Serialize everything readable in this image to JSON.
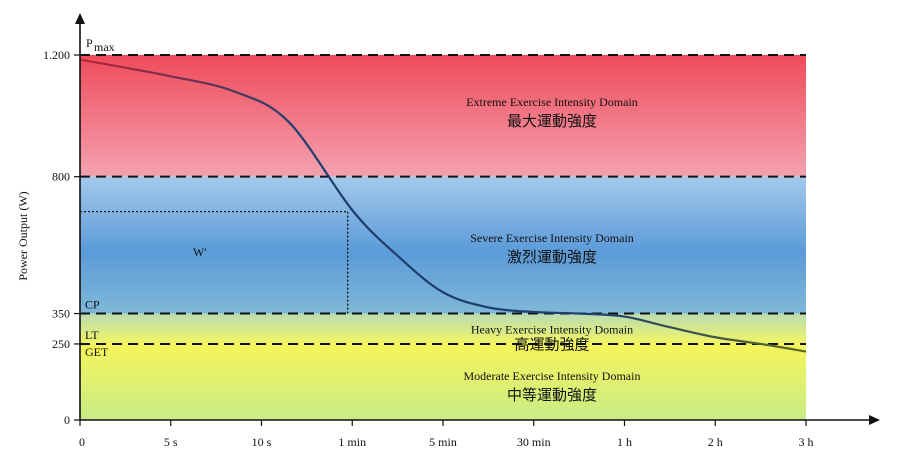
{
  "chart_data": {
    "type": "line",
    "title": "",
    "xlabel": "",
    "ylabel": "Power Output (W)",
    "ylim": [
      0,
      1200
    ],
    "y_ticks": [
      {
        "value": 0,
        "label": "0"
      },
      {
        "value": 250,
        "label": "250"
      },
      {
        "value": 350,
        "label": "350"
      },
      {
        "value": 800,
        "label": "800"
      },
      {
        "value": 1200,
        "label": "1.200"
      }
    ],
    "x_ticks": [
      "0",
      "5 s",
      "10 s",
      "1 min",
      "5 min",
      "30 min",
      "1 h",
      "2 h",
      "3 h"
    ],
    "thresholds": [
      {
        "name": "Pmax",
        "label_main": "P",
        "label_sub": "max",
        "value": 1200
      },
      {
        "name": "upper-severe",
        "value": 800
      },
      {
        "name": "CP",
        "label": "CP",
        "value": 350
      },
      {
        "name": "LT-GET",
        "label_top": "LT",
        "label_bottom": "GET",
        "value": 250
      }
    ],
    "domains": [
      {
        "name_en": "Extreme Exercise Intensity Domain",
        "name_zh": "最大運動強度",
        "color": "#ee5a6a"
      },
      {
        "name_en": "Severe Exercise Intensity Domain",
        "name_zh": "激烈運動強度",
        "color": "#6aaade"
      },
      {
        "name_en": "Heavy Exercise Intensity Domain",
        "name_zh": "高運動強度",
        "color": "#eef46a"
      },
      {
        "name_en": "Moderate Exercise Intensity Domain",
        "name_zh": "中等運動強度",
        "color": "#d8f07a"
      }
    ],
    "w_prime_label": "W′",
    "w_prime_point": {
      "x_index": 2.95,
      "value": 685
    },
    "series": [
      {
        "points": [
          {
            "x_index": 0,
            "value": 1185
          },
          {
            "x_index": 1,
            "value": 1130
          },
          {
            "x_index": 1.7,
            "value": 1080
          },
          {
            "x_index": 2.3,
            "value": 980
          },
          {
            "x_index": 3,
            "value": 690
          },
          {
            "x_index": 3.5,
            "value": 540
          },
          {
            "x_index": 4,
            "value": 420
          },
          {
            "x_index": 4.5,
            "value": 370
          },
          {
            "x_index": 5,
            "value": 355
          },
          {
            "x_index": 5.5,
            "value": 350
          },
          {
            "x_index": 6,
            "value": 340
          },
          {
            "x_index": 6.5,
            "value": 305
          },
          {
            "x_index": 7,
            "value": 272
          },
          {
            "x_index": 7.5,
            "value": 250
          },
          {
            "x_index": 8,
            "value": 225
          }
        ],
        "color": "#1e3f6e"
      }
    ],
    "grid": false
  }
}
